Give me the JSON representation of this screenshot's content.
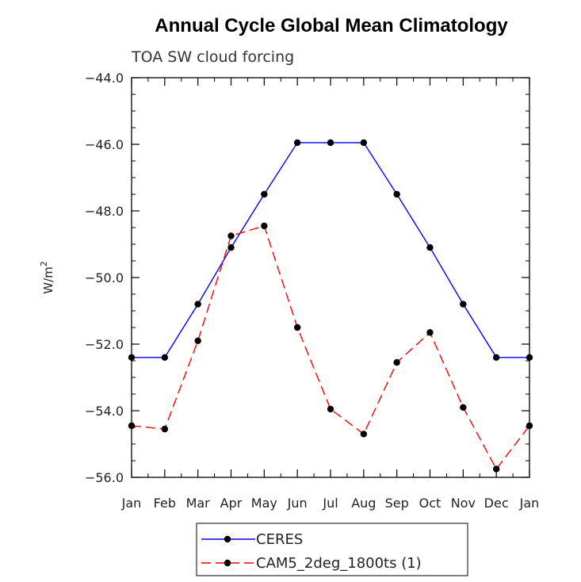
{
  "chart_data": {
    "type": "line",
    "title": "Annual Cycle Global Mean Climatology",
    "subtitle": "TOA SW cloud forcing",
    "xlabel": "",
    "ylabel": "W/m",
    "ylabel_superscript": "2",
    "categories": [
      "Jan",
      "Feb",
      "Mar",
      "Apr",
      "May",
      "Jun",
      "Jul",
      "Aug",
      "Sep",
      "Oct",
      "Nov",
      "Dec",
      "Jan"
    ],
    "ylim": [
      -56.0,
      -44.0
    ],
    "yticks": [
      -44.0,
      -46.0,
      -48.0,
      -50.0,
      -52.0,
      -54.0,
      -56.0
    ],
    "ytick_labels": [
      "−44.0",
      "−46.0",
      "−48.0",
      "−50.0",
      "−52.0",
      "−54.0",
      "−56.0"
    ],
    "grid": false,
    "legend_position": "bottom-center",
    "series": [
      {
        "name": "CERES",
        "color": "#0000ff",
        "dash": "solid",
        "values": [
          -52.4,
          -52.4,
          -50.8,
          -49.1,
          -47.5,
          -45.95,
          -45.95,
          -45.95,
          -47.5,
          -49.1,
          -50.8,
          -52.4,
          -52.4
        ]
      },
      {
        "name": "CAM5_2deg_1800ts (1)",
        "color": "#ff0000",
        "dash": "dashed",
        "values": [
          -54.45,
          -54.55,
          -51.9,
          -48.75,
          -48.45,
          -51.5,
          -53.95,
          -54.7,
          -52.55,
          -51.65,
          -53.9,
          -55.75,
          -54.45
        ]
      }
    ]
  }
}
